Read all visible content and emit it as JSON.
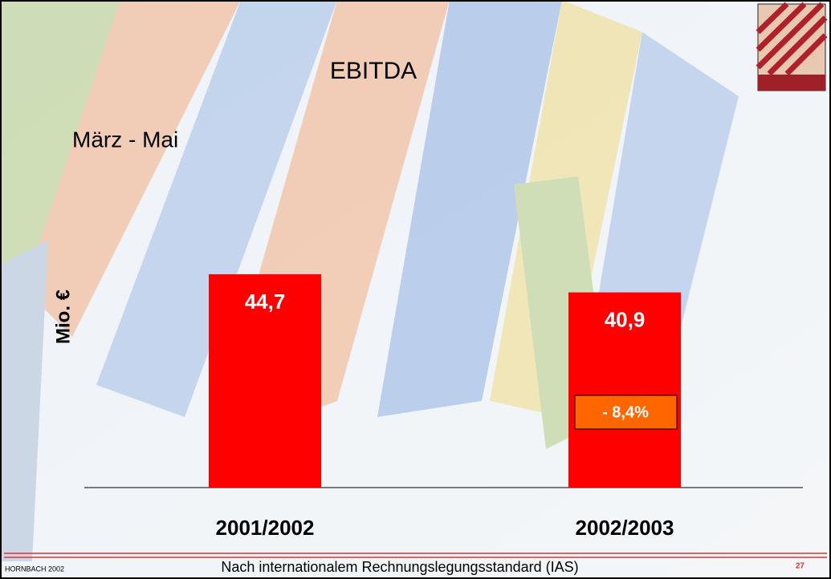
{
  "chart_data": {
    "type": "bar",
    "title": "EBITDA",
    "subtitle": "März - Mai",
    "y_label": "Mio. €",
    "categories": [
      "2001/2002",
      "2002/2003"
    ],
    "values": [
      44.7,
      40.9
    ],
    "value_labels": [
      "44,7",
      "40,9"
    ],
    "color": "#ff0000",
    "annotation": "- 8,4%"
  },
  "footer": {
    "left": "HORNBACH 2002",
    "center": "Nach internationalem Rechnungslegungsstandard (IAS)",
    "page": "27"
  }
}
